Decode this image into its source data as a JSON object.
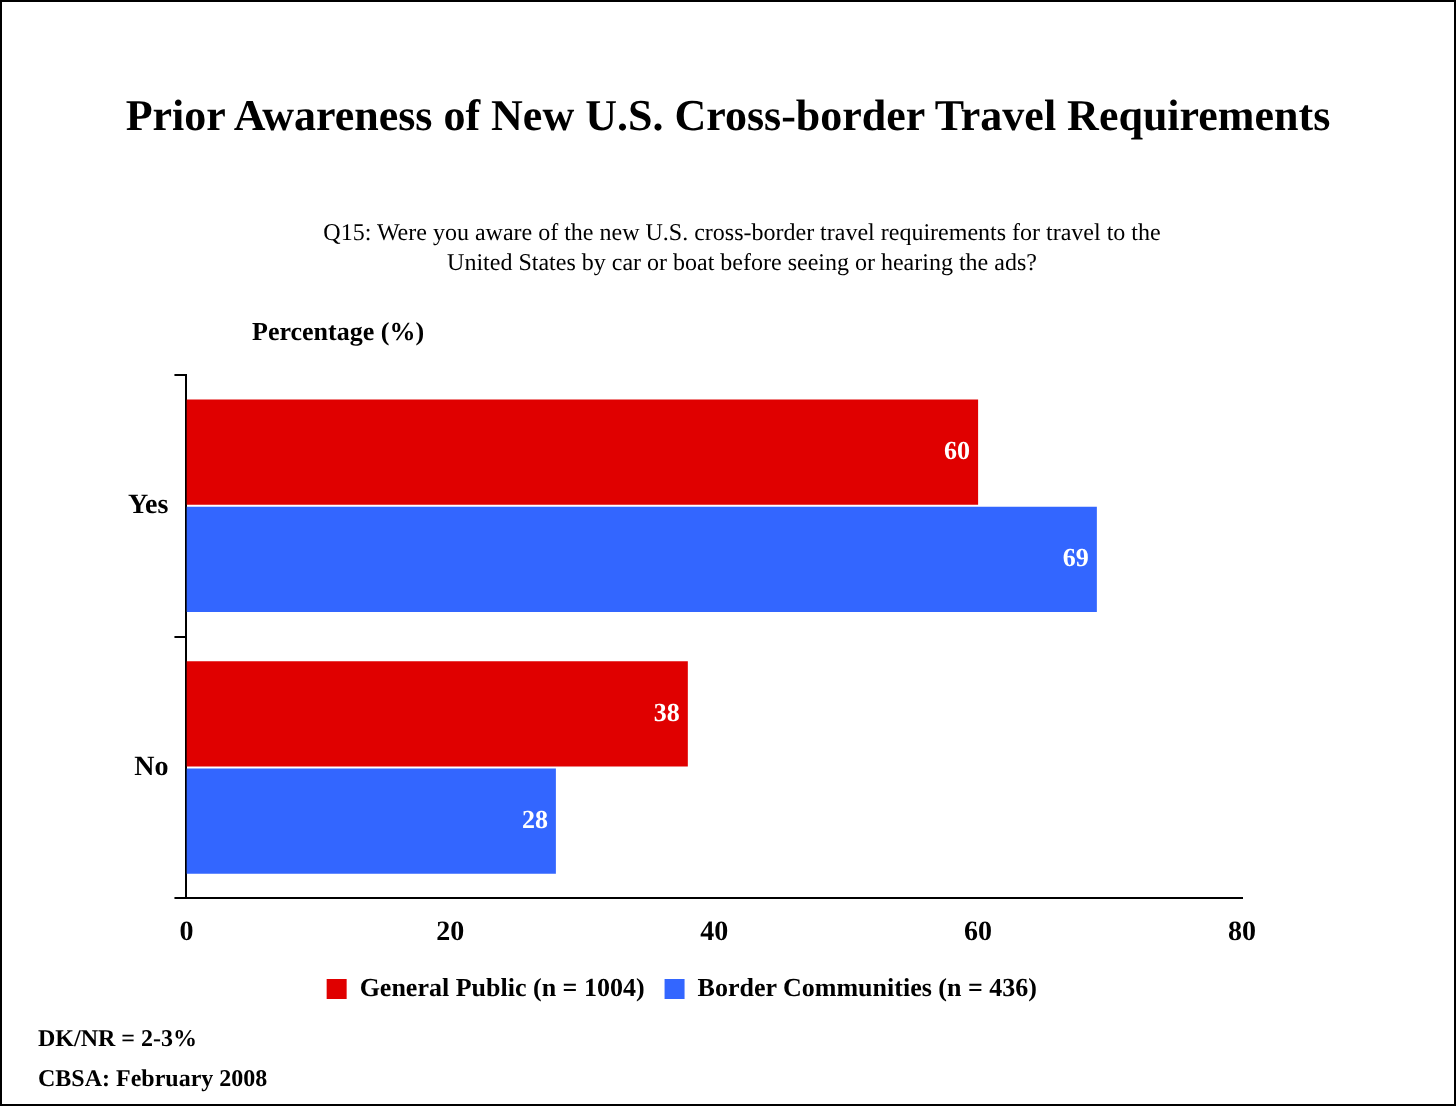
{
  "chart_data": {
    "type": "bar",
    "orientation": "horizontal",
    "title": "Prior Awareness of New U.S. Cross-border Travel Requirements",
    "subtitle": "Q15: Were you aware of the new U.S. cross-border travel requirements for travel to the United States by car or boat before seeing or hearing the ads?",
    "xlabel": "Percentage (%)",
    "categories": [
      "Yes",
      "No"
    ],
    "series": [
      {
        "name": "General Public (n = 1004)",
        "color": "#e00000",
        "values": [
          60,
          38
        ]
      },
      {
        "name": "Border Communities (n = 436)",
        "color": "#3366ff",
        "values": [
          69,
          28
        ]
      }
    ],
    "xlim": [
      0,
      80
    ],
    "xticks": [
      0,
      20,
      40,
      60,
      80
    ],
    "grid": false,
    "legend": "bottom",
    "data_labels": true,
    "annotations": [
      "DK/NR = 2-3%",
      "CBSA: February 2008"
    ]
  }
}
